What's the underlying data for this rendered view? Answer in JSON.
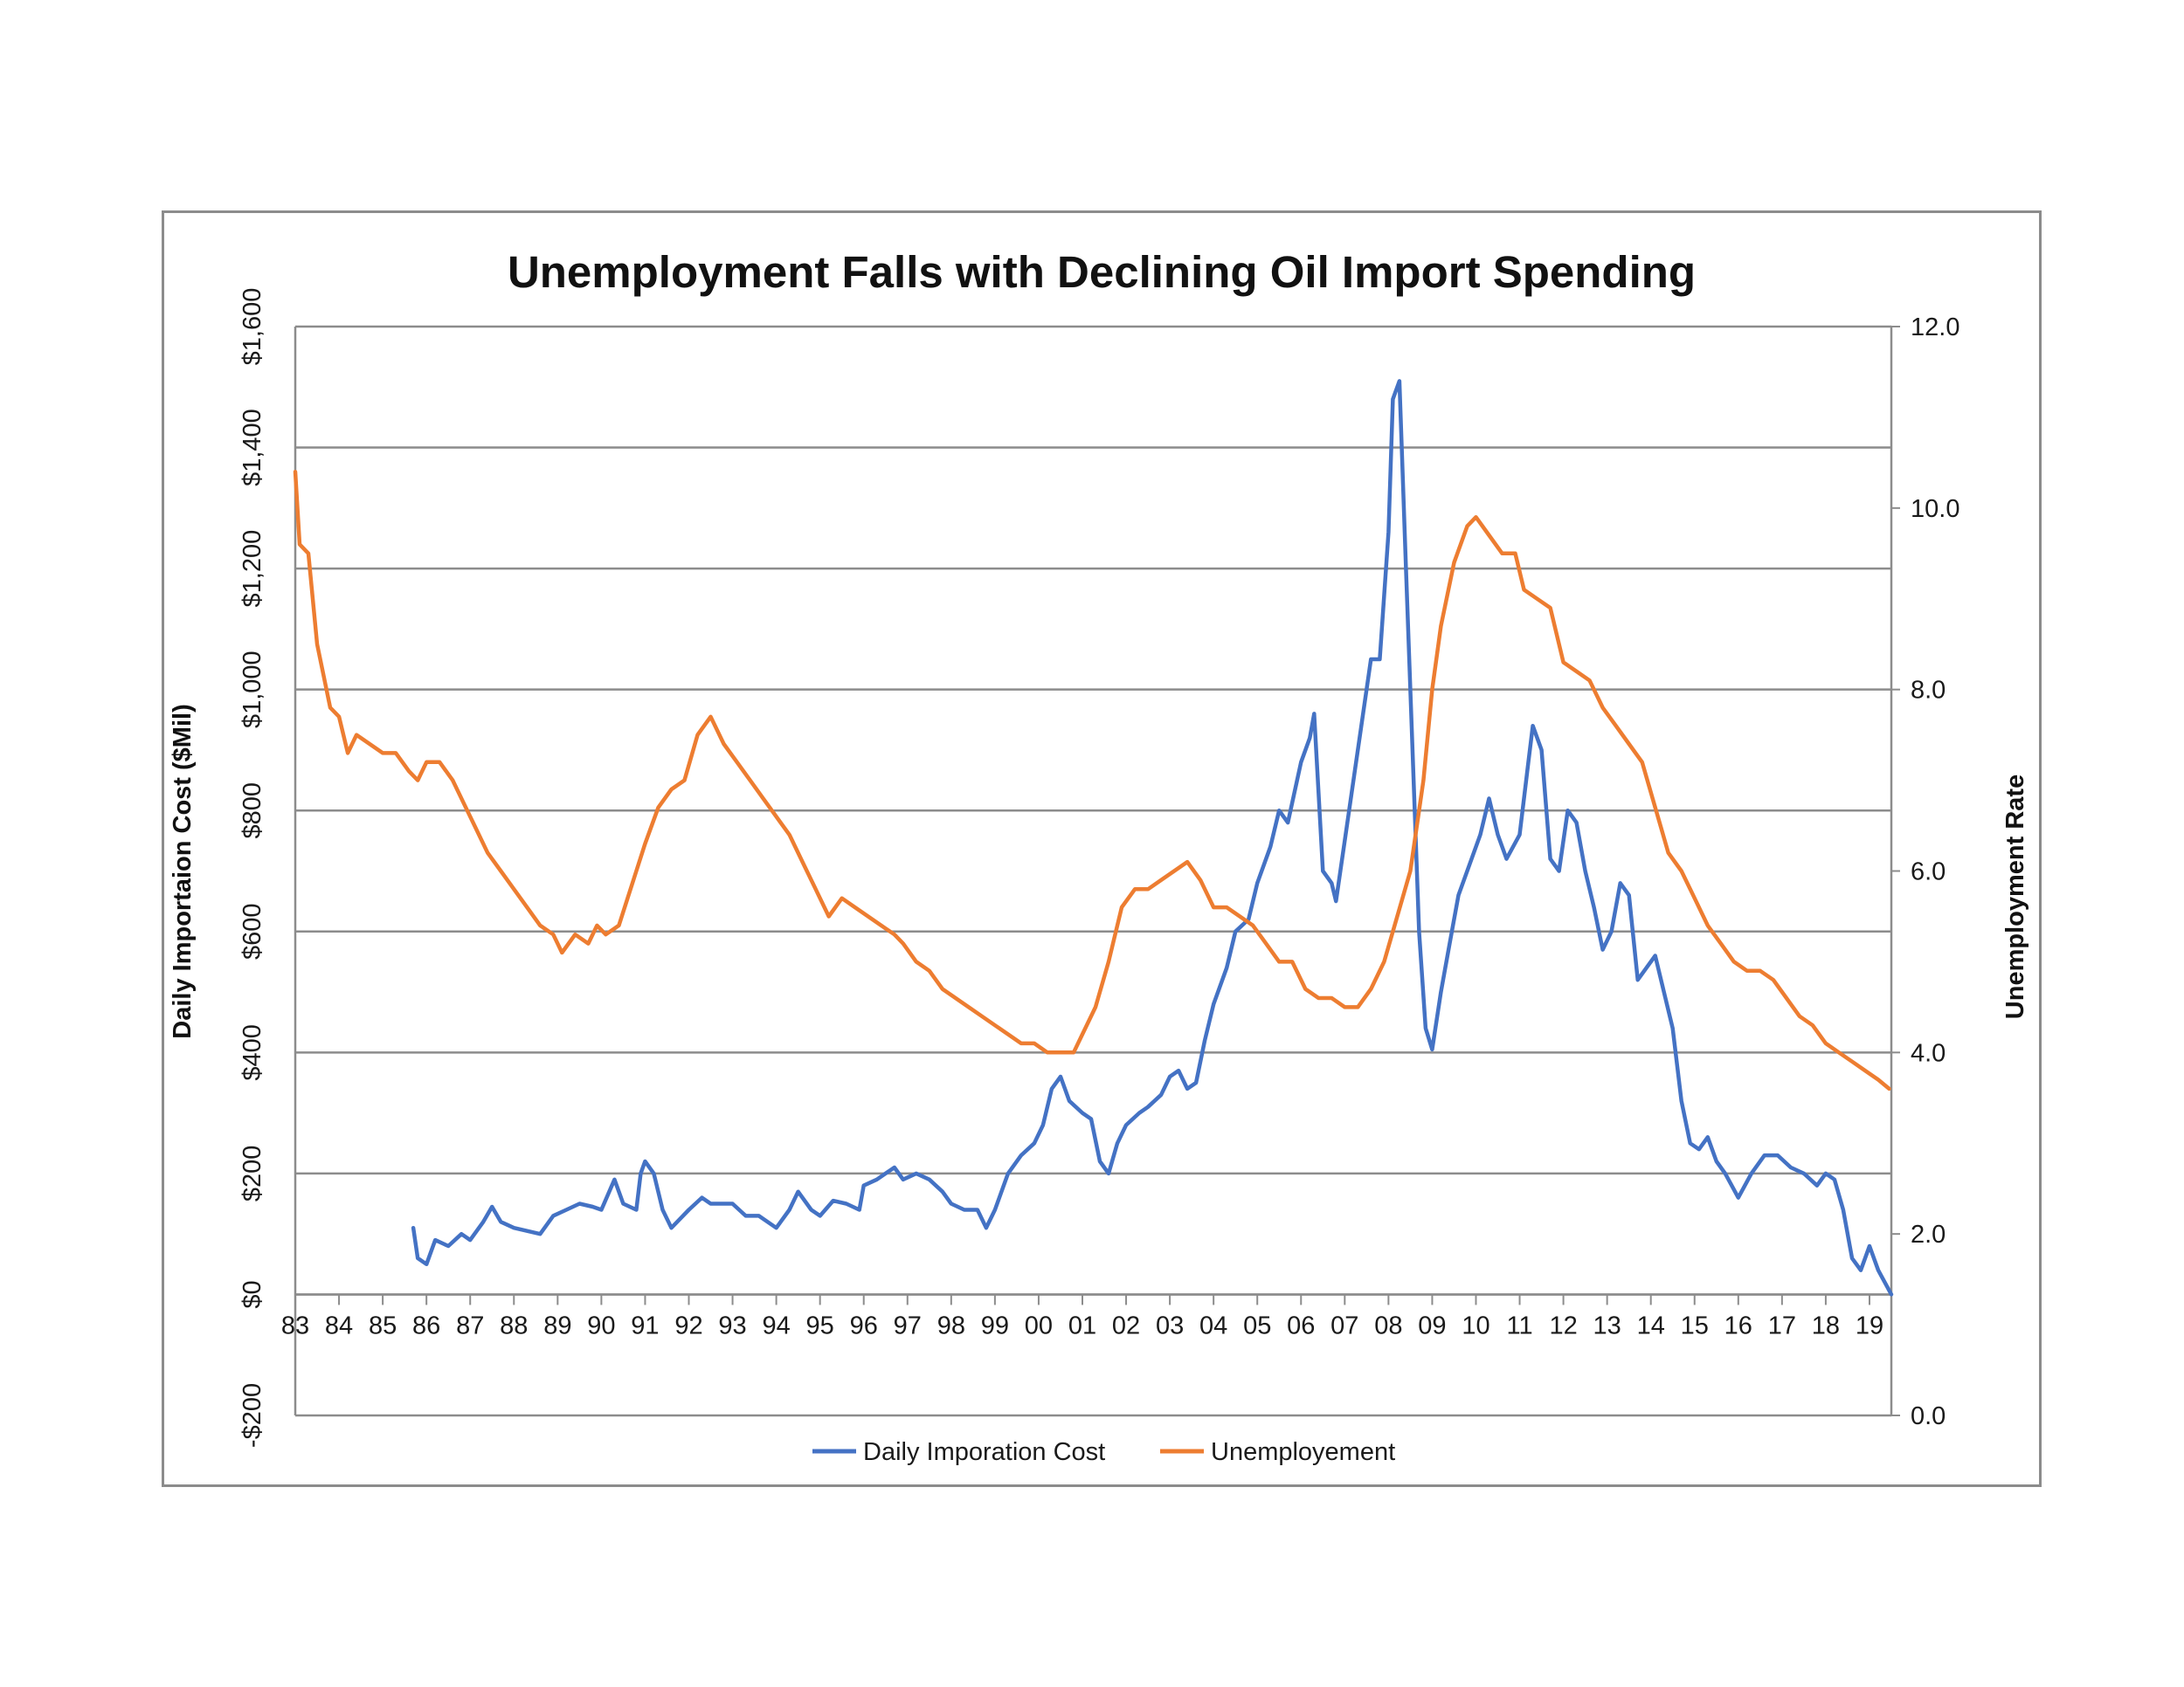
{
  "chart_data": {
    "type": "line",
    "title": "Unemployment Falls with Declining Oil Import Spending",
    "ylabel_left": "Daily Importaion Cost ($Mil)",
    "ylabel_right": "Unemployment Rate",
    "ylim_left": [
      -200,
      1600
    ],
    "ylim_right": [
      0.0,
      12.0
    ],
    "yticks_left": [
      -200,
      0,
      200,
      400,
      600,
      800,
      1000,
      1200,
      1400,
      1600
    ],
    "yticks_left_labels": [
      "-$200",
      "$0",
      "$200",
      "$400",
      "$600",
      "$800",
      "$1,000",
      "$1,200",
      "$1,400",
      "$1,600"
    ],
    "yticks_right": [
      0,
      2,
      4,
      6,
      8,
      10,
      12
    ],
    "yticks_right_labels": [
      "0.0",
      "2.0",
      "4.0",
      "6.0",
      "8.0",
      "10.0",
      "12.0"
    ],
    "xlim": [
      1983.0,
      2019.5
    ],
    "xtick_labels": [
      "83",
      "84",
      "85",
      "86",
      "87",
      "88",
      "89",
      "90",
      "91",
      "92",
      "93",
      "94",
      "95",
      "96",
      "97",
      "98",
      "99",
      "00",
      "01",
      "02",
      "03",
      "04",
      "05",
      "06",
      "07",
      "08",
      "09",
      "10",
      "11",
      "12",
      "13",
      "14",
      "15",
      "16",
      "17",
      "18",
      "19"
    ],
    "grid": "horizontal",
    "legend_position": "bottom",
    "colors": {
      "cost": "#4472C4",
      "unemployment": "#ED7D31",
      "grid": "#8c8c8c",
      "frame": "#8c8c8c"
    },
    "series": [
      {
        "name": "Daily Imporation Cost",
        "axis": "left",
        "points": [
          [
            1985.7,
            110
          ],
          [
            1985.8,
            60
          ],
          [
            1986.0,
            50
          ],
          [
            1986.2,
            90
          ],
          [
            1986.5,
            80
          ],
          [
            1986.8,
            100
          ],
          [
            1987.0,
            90
          ],
          [
            1987.3,
            120
          ],
          [
            1987.5,
            145
          ],
          [
            1987.7,
            120
          ],
          [
            1988.0,
            110
          ],
          [
            1988.3,
            105
          ],
          [
            1988.6,
            100
          ],
          [
            1988.9,
            130
          ],
          [
            1989.2,
            140
          ],
          [
            1989.5,
            150
          ],
          [
            1989.8,
            145
          ],
          [
            1990.0,
            140
          ],
          [
            1990.3,
            190
          ],
          [
            1990.5,
            150
          ],
          [
            1990.8,
            140
          ],
          [
            1990.9,
            200
          ],
          [
            1991.0,
            220
          ],
          [
            1991.2,
            200
          ],
          [
            1991.4,
            140
          ],
          [
            1991.6,
            110
          ],
          [
            1992.0,
            140
          ],
          [
            1992.3,
            160
          ],
          [
            1992.5,
            150
          ],
          [
            1993.0,
            150
          ],
          [
            1993.3,
            130
          ],
          [
            1993.6,
            130
          ],
          [
            1994.0,
            110
          ],
          [
            1994.3,
            140
          ],
          [
            1994.5,
            170
          ],
          [
            1994.8,
            140
          ],
          [
            1995.0,
            130
          ],
          [
            1995.3,
            155
          ],
          [
            1995.6,
            150
          ],
          [
            1995.9,
            140
          ],
          [
            1996.0,
            180
          ],
          [
            1996.3,
            190
          ],
          [
            1996.5,
            200
          ],
          [
            1996.7,
            210
          ],
          [
            1996.9,
            190
          ],
          [
            1997.2,
            200
          ],
          [
            1997.5,
            190
          ],
          [
            1997.8,
            170
          ],
          [
            1998.0,
            150
          ],
          [
            1998.3,
            140
          ],
          [
            1998.6,
            140
          ],
          [
            1998.8,
            110
          ],
          [
            1999.0,
            140
          ],
          [
            1999.3,
            200
          ],
          [
            1999.6,
            230
          ],
          [
            1999.9,
            250
          ],
          [
            2000.1,
            280
          ],
          [
            2000.3,
            340
          ],
          [
            2000.5,
            360
          ],
          [
            2000.7,
            320
          ],
          [
            2001.0,
            300
          ],
          [
            2001.2,
            290
          ],
          [
            2001.4,
            220
          ],
          [
            2001.6,
            200
          ],
          [
            2001.8,
            250
          ],
          [
            2002.0,
            280
          ],
          [
            2002.3,
            300
          ],
          [
            2002.5,
            310
          ],
          [
            2002.8,
            330
          ],
          [
            2003.0,
            360
          ],
          [
            2003.2,
            370
          ],
          [
            2003.4,
            340
          ],
          [
            2003.6,
            350
          ],
          [
            2003.8,
            420
          ],
          [
            2004.0,
            480
          ],
          [
            2004.3,
            540
          ],
          [
            2004.5,
            600
          ],
          [
            2004.8,
            620
          ],
          [
            2005.0,
            680
          ],
          [
            2005.3,
            740
          ],
          [
            2005.5,
            800
          ],
          [
            2005.7,
            780
          ],
          [
            2006.0,
            880
          ],
          [
            2006.2,
            920
          ],
          [
            2006.3,
            960
          ],
          [
            2006.5,
            700
          ],
          [
            2006.7,
            680
          ],
          [
            2006.8,
            650
          ],
          [
            2007.0,
            750
          ],
          [
            2007.2,
            850
          ],
          [
            2007.4,
            950
          ],
          [
            2007.6,
            1050
          ],
          [
            2007.8,
            1050
          ],
          [
            2008.0,
            1260
          ],
          [
            2008.1,
            1480
          ],
          [
            2008.25,
            1510
          ],
          [
            2008.4,
            1200
          ],
          [
            2008.55,
            900
          ],
          [
            2008.7,
            600
          ],
          [
            2008.85,
            440
          ],
          [
            2009.0,
            405
          ],
          [
            2009.2,
            500
          ],
          [
            2009.4,
            580
          ],
          [
            2009.6,
            660
          ],
          [
            2009.9,
            720
          ],
          [
            2010.1,
            760
          ],
          [
            2010.3,
            820
          ],
          [
            2010.5,
            760
          ],
          [
            2010.7,
            720
          ],
          [
            2011.0,
            760
          ],
          [
            2011.2,
            880
          ],
          [
            2011.3,
            940
          ],
          [
            2011.5,
            900
          ],
          [
            2011.7,
            720
          ],
          [
            2011.9,
            700
          ],
          [
            2012.1,
            800
          ],
          [
            2012.3,
            780
          ],
          [
            2012.5,
            700
          ],
          [
            2012.7,
            640
          ],
          [
            2012.9,
            570
          ],
          [
            2013.1,
            600
          ],
          [
            2013.3,
            680
          ],
          [
            2013.5,
            660
          ],
          [
            2013.7,
            520
          ],
          [
            2013.9,
            540
          ],
          [
            2014.1,
            560
          ],
          [
            2014.3,
            500
          ],
          [
            2014.5,
            440
          ],
          [
            2014.7,
            320
          ],
          [
            2014.9,
            250
          ],
          [
            2015.1,
            240
          ],
          [
            2015.3,
            260
          ],
          [
            2015.5,
            220
          ],
          [
            2015.7,
            200
          ],
          [
            2016.0,
            160
          ],
          [
            2016.3,
            200
          ],
          [
            2016.6,
            230
          ],
          [
            2016.9,
            230
          ],
          [
            2017.2,
            210
          ],
          [
            2017.5,
            200
          ],
          [
            2017.8,
            180
          ],
          [
            2018.0,
            200
          ],
          [
            2018.2,
            190
          ],
          [
            2018.4,
            140
          ],
          [
            2018.6,
            60
          ],
          [
            2018.8,
            40
          ],
          [
            2019.0,
            80
          ],
          [
            2019.2,
            40
          ],
          [
            2019.35,
            20
          ],
          [
            2019.5,
            0
          ]
        ]
      },
      {
        "name": "Unemployement",
        "axis": "right",
        "points": [
          [
            1983.0,
            10.4
          ],
          [
            1983.1,
            9.6
          ],
          [
            1983.3,
            9.5
          ],
          [
            1983.5,
            8.5
          ],
          [
            1983.8,
            7.8
          ],
          [
            1984.0,
            7.7
          ],
          [
            1984.2,
            7.3
          ],
          [
            1984.4,
            7.5
          ],
          [
            1984.7,
            7.4
          ],
          [
            1985.0,
            7.3
          ],
          [
            1985.3,
            7.3
          ],
          [
            1985.6,
            7.1
          ],
          [
            1985.8,
            7.0
          ],
          [
            1986.0,
            7.2
          ],
          [
            1986.3,
            7.2
          ],
          [
            1986.6,
            7.0
          ],
          [
            1986.9,
            6.7
          ],
          [
            1987.1,
            6.5
          ],
          [
            1987.4,
            6.2
          ],
          [
            1987.7,
            6.0
          ],
          [
            1988.0,
            5.8
          ],
          [
            1988.3,
            5.6
          ],
          [
            1988.6,
            5.4
          ],
          [
            1988.9,
            5.3
          ],
          [
            1989.1,
            5.1
          ],
          [
            1989.4,
            5.3
          ],
          [
            1989.7,
            5.2
          ],
          [
            1989.9,
            5.4
          ],
          [
            1990.1,
            5.3
          ],
          [
            1990.4,
            5.4
          ],
          [
            1990.6,
            5.7
          ],
          [
            1990.8,
            6.0
          ],
          [
            1991.0,
            6.3
          ],
          [
            1991.3,
            6.7
          ],
          [
            1991.6,
            6.9
          ],
          [
            1991.9,
            7.0
          ],
          [
            1992.2,
            7.5
          ],
          [
            1992.5,
            7.7
          ],
          [
            1992.8,
            7.4
          ],
          [
            1993.1,
            7.2
          ],
          [
            1993.4,
            7.0
          ],
          [
            1993.7,
            6.8
          ],
          [
            1994.0,
            6.6
          ],
          [
            1994.3,
            6.4
          ],
          [
            1994.6,
            6.1
          ],
          [
            1994.9,
            5.8
          ],
          [
            1995.2,
            5.5
          ],
          [
            1995.5,
            5.7
          ],
          [
            1995.8,
            5.6
          ],
          [
            1996.1,
            5.5
          ],
          [
            1996.4,
            5.4
          ],
          [
            1996.7,
            5.3
          ],
          [
            1996.9,
            5.2
          ],
          [
            1997.2,
            5.0
          ],
          [
            1997.5,
            4.9
          ],
          [
            1997.8,
            4.7
          ],
          [
            1998.1,
            4.6
          ],
          [
            1998.4,
            4.5
          ],
          [
            1998.7,
            4.4
          ],
          [
            1999.0,
            4.3
          ],
          [
            1999.3,
            4.2
          ],
          [
            1999.6,
            4.1
          ],
          [
            1999.9,
            4.1
          ],
          [
            2000.2,
            4.0
          ],
          [
            2000.5,
            4.0
          ],
          [
            2000.8,
            4.0
          ],
          [
            2001.0,
            4.2
          ],
          [
            2001.3,
            4.5
          ],
          [
            2001.6,
            5.0
          ],
          [
            2001.9,
            5.6
          ],
          [
            2002.2,
            5.8
          ],
          [
            2002.5,
            5.8
          ],
          [
            2002.8,
            5.9
          ],
          [
            2003.1,
            6.0
          ],
          [
            2003.4,
            6.1
          ],
          [
            2003.7,
            5.9
          ],
          [
            2004.0,
            5.6
          ],
          [
            2004.3,
            5.6
          ],
          [
            2004.6,
            5.5
          ],
          [
            2004.9,
            5.4
          ],
          [
            2005.2,
            5.2
          ],
          [
            2005.5,
            5.0
          ],
          [
            2005.8,
            5.0
          ],
          [
            2006.1,
            4.7
          ],
          [
            2006.4,
            4.6
          ],
          [
            2006.7,
            4.6
          ],
          [
            2007.0,
            4.5
          ],
          [
            2007.3,
            4.5
          ],
          [
            2007.6,
            4.7
          ],
          [
            2007.9,
            5.0
          ],
          [
            2008.2,
            5.5
          ],
          [
            2008.5,
            6.0
          ],
          [
            2008.8,
            7.0
          ],
          [
            2009.0,
            8.0
          ],
          [
            2009.2,
            8.7
          ],
          [
            2009.5,
            9.4
          ],
          [
            2009.8,
            9.8
          ],
          [
            2010.0,
            9.9
          ],
          [
            2010.3,
            9.7
          ],
          [
            2010.6,
            9.5
          ],
          [
            2010.9,
            9.5
          ],
          [
            2011.1,
            9.1
          ],
          [
            2011.4,
            9.0
          ],
          [
            2011.7,
            8.9
          ],
          [
            2012.0,
            8.3
          ],
          [
            2012.3,
            8.2
          ],
          [
            2012.6,
            8.1
          ],
          [
            2012.9,
            7.8
          ],
          [
            2013.2,
            7.6
          ],
          [
            2013.5,
            7.4
          ],
          [
            2013.8,
            7.2
          ],
          [
            2014.1,
            6.7
          ],
          [
            2014.4,
            6.2
          ],
          [
            2014.7,
            6.0
          ],
          [
            2015.0,
            5.7
          ],
          [
            2015.3,
            5.4
          ],
          [
            2015.6,
            5.2
          ],
          [
            2015.9,
            5.0
          ],
          [
            2016.2,
            4.9
          ],
          [
            2016.5,
            4.9
          ],
          [
            2016.8,
            4.8
          ],
          [
            2017.1,
            4.6
          ],
          [
            2017.4,
            4.4
          ],
          [
            2017.7,
            4.3
          ],
          [
            2018.0,
            4.1
          ],
          [
            2018.3,
            4.0
          ],
          [
            2018.6,
            3.9
          ],
          [
            2018.9,
            3.8
          ],
          [
            2019.2,
            3.7
          ],
          [
            2019.45,
            3.6
          ]
        ]
      }
    ]
  }
}
